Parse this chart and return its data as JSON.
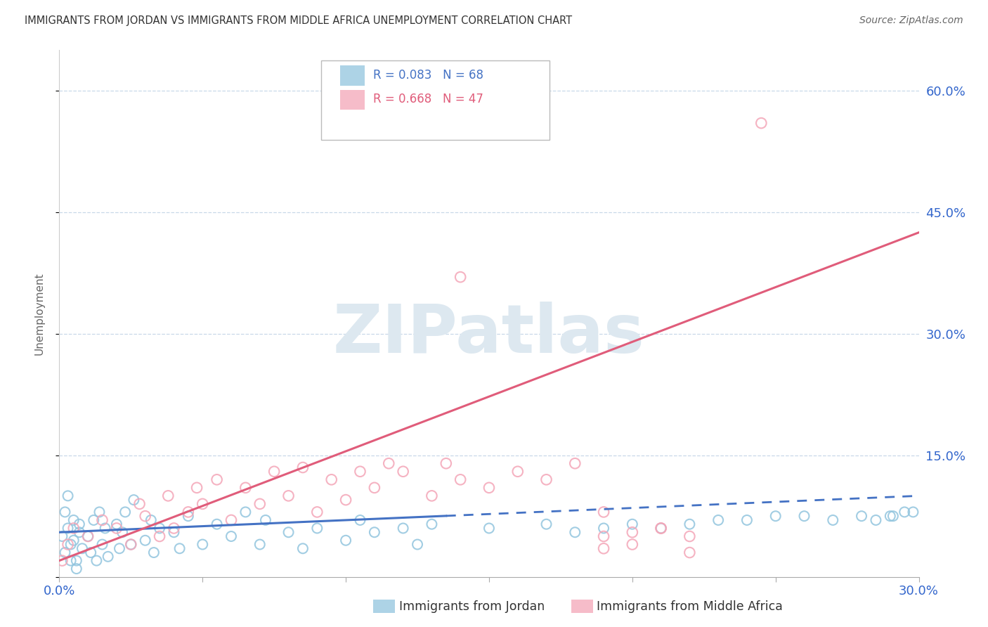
{
  "title": "IMMIGRANTS FROM JORDAN VS IMMIGRANTS FROM MIDDLE AFRICA UNEMPLOYMENT CORRELATION CHART",
  "source": "Source: ZipAtlas.com",
  "ylabel": "Unemployment",
  "xlim": [
    0.0,
    0.3
  ],
  "ylim": [
    0.0,
    0.65
  ],
  "series1_name": "Immigrants from Jordan",
  "series2_name": "Immigrants from Middle Africa",
  "series1_color": "#92c5de",
  "series2_color": "#f4a6b8",
  "trend1_color": "#4472c4",
  "trend2_color": "#e05c7a",
  "watermark": "ZIPatlas",
  "watermark_color": "#dde8f0",
  "legend_r1": "R = 0.083",
  "legend_n1": "N = 68",
  "legend_r2": "R = 0.668",
  "legend_n2": "N = 47",
  "jordan_x": [
    0.001,
    0.002,
    0.003,
    0.004,
    0.005,
    0.006,
    0.007,
    0.008,
    0.002,
    0.003,
    0.004,
    0.005,
    0.006,
    0.007,
    0.01,
    0.011,
    0.012,
    0.013,
    0.014,
    0.015,
    0.016,
    0.017,
    0.02,
    0.021,
    0.022,
    0.023,
    0.025,
    0.026,
    0.03,
    0.032,
    0.033,
    0.035,
    0.04,
    0.042,
    0.045,
    0.05,
    0.055,
    0.06,
    0.065,
    0.07,
    0.072,
    0.08,
    0.085,
    0.09,
    0.1,
    0.105,
    0.11,
    0.12,
    0.125,
    0.13,
    0.15,
    0.17,
    0.18,
    0.19,
    0.2,
    0.21,
    0.22,
    0.23,
    0.24,
    0.25,
    0.26,
    0.27,
    0.28,
    0.285,
    0.29,
    0.291,
    0.295,
    0.298
  ],
  "jordan_y": [
    0.05,
    0.03,
    0.06,
    0.04,
    0.07,
    0.02,
    0.055,
    0.035,
    0.08,
    0.1,
    0.02,
    0.045,
    0.01,
    0.065,
    0.05,
    0.03,
    0.07,
    0.02,
    0.08,
    0.04,
    0.06,
    0.025,
    0.065,
    0.035,
    0.055,
    0.08,
    0.04,
    0.095,
    0.045,
    0.07,
    0.03,
    0.06,
    0.055,
    0.035,
    0.075,
    0.04,
    0.065,
    0.05,
    0.08,
    0.04,
    0.07,
    0.055,
    0.035,
    0.06,
    0.045,
    0.07,
    0.055,
    0.06,
    0.04,
    0.065,
    0.06,
    0.065,
    0.055,
    0.06,
    0.065,
    0.06,
    0.065,
    0.07,
    0.07,
    0.075,
    0.075,
    0.07,
    0.075,
    0.07,
    0.075,
    0.075,
    0.08,
    0.08
  ],
  "africa_x": [
    0.001,
    0.003,
    0.005,
    0.01,
    0.015,
    0.02,
    0.025,
    0.028,
    0.03,
    0.035,
    0.038,
    0.04,
    0.045,
    0.048,
    0.05,
    0.055,
    0.06,
    0.065,
    0.07,
    0.075,
    0.08,
    0.085,
    0.09,
    0.095,
    0.1,
    0.105,
    0.11,
    0.115,
    0.12,
    0.13,
    0.135,
    0.14,
    0.15,
    0.16,
    0.17,
    0.18,
    0.19,
    0.2,
    0.21,
    0.22,
    0.19,
    0.22,
    0.21,
    0.19,
    0.2,
    0.245,
    0.14
  ],
  "africa_y": [
    0.02,
    0.04,
    0.06,
    0.05,
    0.07,
    0.06,
    0.04,
    0.09,
    0.075,
    0.05,
    0.1,
    0.06,
    0.08,
    0.11,
    0.09,
    0.12,
    0.07,
    0.11,
    0.09,
    0.13,
    0.1,
    0.135,
    0.08,
    0.12,
    0.095,
    0.13,
    0.11,
    0.14,
    0.13,
    0.1,
    0.14,
    0.12,
    0.11,
    0.13,
    0.12,
    0.14,
    0.05,
    0.04,
    0.06,
    0.05,
    0.035,
    0.03,
    0.06,
    0.08,
    0.055,
    0.56,
    0.37
  ]
}
